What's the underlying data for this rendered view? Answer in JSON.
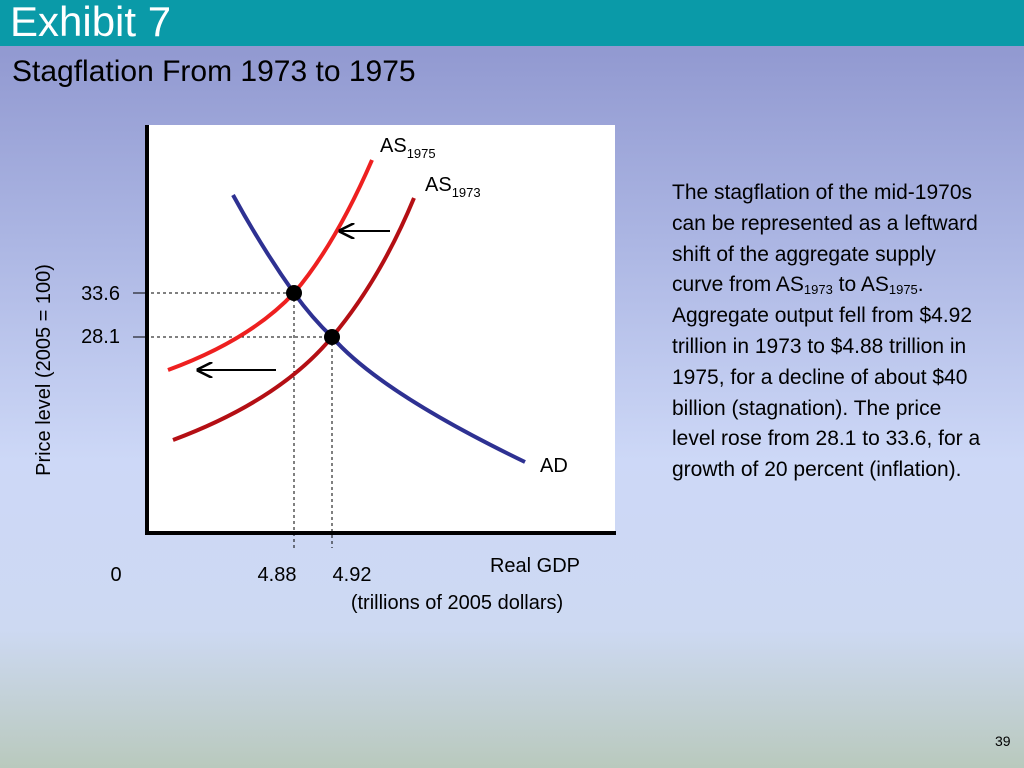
{
  "header": {
    "exhibit": "Exhibit 7",
    "title": "Stagflation From 1973 to 1975"
  },
  "graph": {
    "curves": {
      "as1975": {
        "label": "AS",
        "subscript": "1975"
      },
      "as1973": {
        "label": "AS",
        "subscript": "1973"
      },
      "ad": {
        "label": "AD"
      }
    },
    "y_axis_label": "Price level (2005 = 100)",
    "y_ticks": [
      "33.6",
      "28.1"
    ],
    "x_ticks": [
      "0",
      "4.88",
      "4.92"
    ],
    "x_axis_label": "Real GDP",
    "x_axis_unit": "(trillions of 2005 dollars)"
  },
  "body": {
    "parts": [
      {
        "text": "The stagflation of the mid-1970s can be represented as a leftward shift of the aggregate supply curve from AS"
      },
      {
        "sub": "1973"
      },
      {
        "text": " to AS"
      },
      {
        "sub": "1975"
      },
      {
        "text": ". Aggregate output fell from $4.92 trillion in 1973 to $4.88 trillion in 1975, for a decline of about $40 billion (stagnation). The price level rose from 28.1 to 33.6, for a growth of 20 percent (inflation)."
      }
    ]
  },
  "footer": {
    "page": "39"
  }
}
